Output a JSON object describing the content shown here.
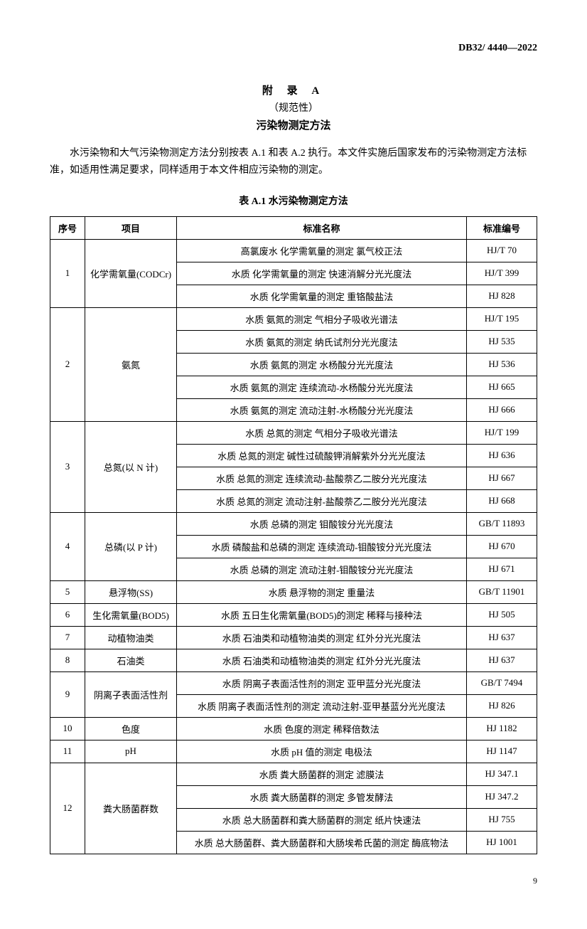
{
  "header_code": "DB32/ 4440—2022",
  "appendix": {
    "title": "附  录  A",
    "subtitle": "（规范性）",
    "heading": "污染物测定方法"
  },
  "intro": "水污染物和大气污染物测定方法分别按表 A.1 和表 A.2 执行。本文件实施后国家发布的污染物测定方法标准，如适用性满足要求，同样适用于本文件相应污染物的测定。",
  "table": {
    "caption": "表 A.1  水污染物测定方法",
    "headers": [
      "序号",
      "项目",
      "标准名称",
      "标准编号"
    ],
    "groups": [
      {
        "seq": "1",
        "item": "化学需氧量(CODCr)",
        "rows": [
          {
            "name": "高氯废水  化学需氧量的测定  氯气校正法",
            "code": "HJ/T 70"
          },
          {
            "name": "水质  化学需氧量的测定  快速消解分光光度法",
            "code": "HJ/T 399"
          },
          {
            "name": "水质  化学需氧量的测定  重铬酸盐法",
            "code": "HJ 828"
          }
        ]
      },
      {
        "seq": "2",
        "item": "氨氮",
        "rows": [
          {
            "name": "水质  氨氮的测定  气相分子吸收光谱法",
            "code": "HJ/T 195"
          },
          {
            "name": "水质  氨氮的测定  纳氏试剂分光光度法",
            "code": "HJ 535"
          },
          {
            "name": "水质  氨氮的测定  水杨酸分光光度法",
            "code": "HJ 536"
          },
          {
            "name": "水质  氨氮的测定  连续流动-水杨酸分光光度法",
            "code": "HJ 665"
          },
          {
            "name": "水质  氨氮的测定  流动注射-水杨酸分光光度法",
            "code": "HJ 666"
          }
        ]
      },
      {
        "seq": "3",
        "item": "总氮(以 N 计)",
        "rows": [
          {
            "name": "水质  总氮的测定  气相分子吸收光谱法",
            "code": "HJ/T 199"
          },
          {
            "name": "水质  总氮的测定  碱性过硫酸钾消解紫外分光光度法",
            "code": "HJ 636"
          },
          {
            "name": "水质  总氮的测定  连续流动-盐酸萘乙二胺分光光度法",
            "code": "HJ 667"
          },
          {
            "name": "水质  总氮的测定  流动注射-盐酸萘乙二胺分光光度法",
            "code": "HJ 668"
          }
        ]
      },
      {
        "seq": "4",
        "item": "总磷(以 P 计)",
        "rows": [
          {
            "name": "水质  总磷的测定  钼酸铵分光光度法",
            "code": "GB/T 11893"
          },
          {
            "name": "水质  磷酸盐和总磷的测定  连续流动-钼酸铵分光光度法",
            "code": "HJ 670"
          },
          {
            "name": "水质  总磷的测定  流动注射-钼酸铵分光光度法",
            "code": "HJ 671"
          }
        ]
      },
      {
        "seq": "5",
        "item": "悬浮物(SS)",
        "rows": [
          {
            "name": "水质  悬浮物的测定  重量法",
            "code": "GB/T 11901"
          }
        ]
      },
      {
        "seq": "6",
        "item": "生化需氧量(BOD5)",
        "rows": [
          {
            "name": "水质  五日生化需氧量(BOD5)的测定  稀释与接种法",
            "code": "HJ 505"
          }
        ]
      },
      {
        "seq": "7",
        "item": "动植物油类",
        "rows": [
          {
            "name": "水质  石油类和动植物油类的测定  红外分光光度法",
            "code": "HJ 637"
          }
        ]
      },
      {
        "seq": "8",
        "item": "石油类",
        "rows": [
          {
            "name": "水质  石油类和动植物油类的测定  红外分光光度法",
            "code": "HJ 637"
          }
        ]
      },
      {
        "seq": "9",
        "item": "阴离子表面活性剂",
        "rows": [
          {
            "name": "水质  阴离子表面活性剂的测定  亚甲蓝分光光度法",
            "code": "GB/T 7494"
          },
          {
            "name": "水质  阴离子表面活性剂的测定  流动注射-亚甲基蓝分光光度法",
            "code": "HJ 826"
          }
        ]
      },
      {
        "seq": "10",
        "item": "色度",
        "rows": [
          {
            "name": "水质  色度的测定  稀释倍数法",
            "code": "HJ 1182"
          }
        ]
      },
      {
        "seq": "11",
        "item": "pH",
        "rows": [
          {
            "name": "水质  pH 值的测定  电极法",
            "code": "HJ 1147"
          }
        ]
      },
      {
        "seq": "12",
        "item": "粪大肠菌群数",
        "rows": [
          {
            "name": "水质  粪大肠菌群的测定  滤膜法",
            "code": "HJ 347.1"
          },
          {
            "name": "水质  粪大肠菌群的测定  多管发酵法",
            "code": "HJ 347.2"
          },
          {
            "name": "水质  总大肠菌群和粪大肠菌群的测定  纸片快速法",
            "code": "HJ 755"
          },
          {
            "name": "水质  总大肠菌群、粪大肠菌群和大肠埃希氏菌的测定  酶底物法",
            "code": "HJ 1001"
          }
        ]
      }
    ]
  },
  "page_number": "9"
}
